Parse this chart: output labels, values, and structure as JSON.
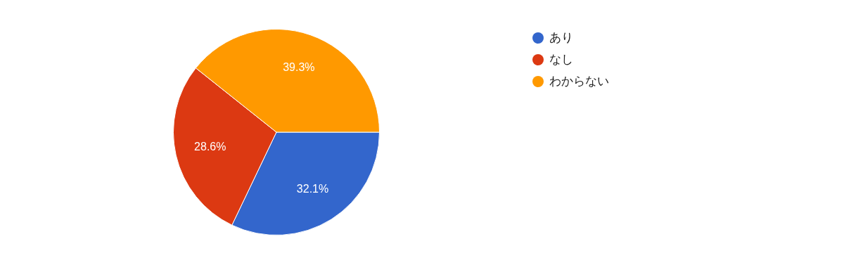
{
  "chart_data": {
    "type": "pie",
    "categories": [
      "あり",
      "なし",
      "わからない"
    ],
    "values": [
      32.1,
      28.6,
      39.3
    ],
    "colors": [
      "#3366cc",
      "#dc3912",
      "#ff9900"
    ],
    "value_labels": [
      "32.1%",
      "28.6%",
      "39.3%"
    ],
    "legend": "top right"
  }
}
